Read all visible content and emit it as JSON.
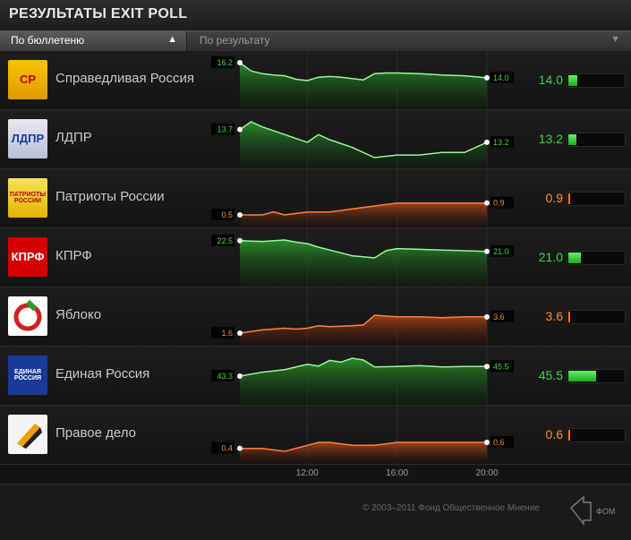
{
  "header": {
    "title": "РЕЗУЛЬТАТЫ EXIT POLL"
  },
  "sort": {
    "ballot_label": "По бюллетеню",
    "ballot_arrow": "▲",
    "result_label": "По результату",
    "result_arrow": "▼"
  },
  "parties": [
    {
      "name": "Справедливая Россия",
      "value": "14.0",
      "start_label": "16.2",
      "end_label": "14.0",
      "color": "#22bb22",
      "logo": "sr-logo",
      "logo_text": "СР",
      "share": 14.0
    },
    {
      "name": "ЛДПР",
      "value": "13.2",
      "start_label": "13.7",
      "end_label": "13.2",
      "color": "#22bb22",
      "logo": "ldpr-logo",
      "logo_text": "ЛДПР",
      "share": 13.2
    },
    {
      "name": "Патриоты России",
      "value": "0.9",
      "start_label": "0.5",
      "end_label": "0.9",
      "color": "#ff7722",
      "logo": "patriots-logo",
      "logo_text": "ПАТРИОТЫ РОССИИ",
      "share": 0.9
    },
    {
      "name": "КПРФ",
      "value": "21.0",
      "start_label": "22.5",
      "end_label": "21.0",
      "color": "#22bb22",
      "logo": "kprf-logo",
      "logo_text": "КПРФ",
      "share": 21.0
    },
    {
      "name": "Яблоко",
      "value": "3.6",
      "start_label": "1.6",
      "end_label": "3.6",
      "color": "#ff7722",
      "logo": "yabloko-logo",
      "logo_text": "",
      "share": 3.6
    },
    {
      "name": "Единая Россия",
      "value": "45.5",
      "start_label": "43.3",
      "end_label": "45.5",
      "color": "#22bb22",
      "logo": "er-logo",
      "logo_text": "ЕДИНАЯ РОССИЯ",
      "share": 45.5
    },
    {
      "name": "Правое дело",
      "value": "0.6",
      "start_label": "0.4",
      "end_label": "0.6",
      "color": "#ff7722",
      "logo": "pravoe-delo-logo",
      "logo_text": "",
      "share": 0.6
    }
  ],
  "chart_data": {
    "type": "line",
    "x_ticks": [
      "12:00",
      "16:00",
      "20:00"
    ],
    "x_range": [
      "9:00",
      "20:00"
    ],
    "series": [
      {
        "name": "Справедливая Россия",
        "color": "#22bb22",
        "x": [
          9.0,
          9.5,
          10.0,
          10.5,
          11.0,
          11.5,
          12.0,
          12.5,
          13.0,
          13.5,
          14.0,
          14.5,
          15.0,
          15.5,
          16.0,
          17.0,
          18.0,
          19.0,
          20.0
        ],
        "values": [
          16.2,
          15.0,
          14.6,
          14.4,
          14.3,
          13.8,
          13.6,
          14.1,
          14.2,
          14.1,
          13.9,
          13.7,
          14.6,
          14.7,
          14.7,
          14.6,
          14.4,
          14.3,
          14.0
        ]
      },
      {
        "name": "ЛДПР",
        "color": "#22bb22",
        "x": [
          9.0,
          9.5,
          10.0,
          11.0,
          12.0,
          12.5,
          13.0,
          14.0,
          15.0,
          16.0,
          17.0,
          18.0,
          19.0,
          20.0
        ],
        "values": [
          13.7,
          14.0,
          13.8,
          13.5,
          13.2,
          13.5,
          13.3,
          13.0,
          12.6,
          12.7,
          12.7,
          12.8,
          12.8,
          13.2
        ]
      },
      {
        "name": "Патриоты России",
        "color": "#ff7722",
        "x": [
          9.0,
          10.0,
          10.5,
          11.0,
          12.0,
          13.0,
          14.0,
          15.0,
          16.0,
          17.0,
          18.0,
          19.0,
          20.0
        ],
        "values": [
          0.5,
          0.5,
          0.6,
          0.5,
          0.6,
          0.6,
          0.7,
          0.8,
          0.9,
          0.9,
          0.9,
          0.9,
          0.9
        ]
      },
      {
        "name": "КПРФ",
        "color": "#22bb22",
        "x": [
          9.0,
          10.0,
          11.0,
          11.5,
          12.0,
          12.5,
          13.0,
          14.0,
          15.0,
          15.5,
          16.0,
          17.0,
          18.0,
          19.0,
          20.0
        ],
        "values": [
          22.5,
          22.4,
          22.6,
          22.3,
          22.1,
          21.6,
          21.2,
          20.4,
          20.1,
          21.1,
          21.4,
          21.3,
          21.2,
          21.1,
          21.0
        ]
      },
      {
        "name": "Яблоко",
        "color": "#ff7722",
        "x": [
          9.0,
          10.0,
          11.0,
          11.5,
          12.0,
          12.5,
          13.0,
          14.0,
          14.5,
          15.0,
          15.5,
          16.0,
          17.0,
          18.0,
          19.0,
          20.0
        ],
        "values": [
          1.6,
          2.0,
          2.2,
          2.1,
          2.2,
          2.5,
          2.4,
          2.5,
          2.6,
          3.8,
          3.7,
          3.6,
          3.6,
          3.5,
          3.6,
          3.6
        ]
      },
      {
        "name": "Единая Россия",
        "color": "#22bb22",
        "x": [
          9.0,
          10.0,
          11.0,
          12.0,
          12.5,
          13.0,
          13.5,
          14.0,
          14.5,
          15.0,
          16.0,
          17.0,
          18.0,
          19.0,
          20.0
        ],
        "values": [
          43.3,
          44.2,
          44.8,
          46.0,
          45.6,
          46.9,
          46.5,
          47.4,
          47.0,
          45.4,
          45.5,
          45.7,
          45.4,
          45.5,
          45.5
        ]
      },
      {
        "name": "Правое дело",
        "color": "#ff7722",
        "x": [
          9.0,
          10.0,
          11.0,
          12.0,
          12.5,
          13.0,
          14.0,
          15.0,
          16.0,
          17.0,
          18.0,
          19.0,
          20.0
        ],
        "values": [
          0.4,
          0.4,
          0.3,
          0.5,
          0.6,
          0.6,
          0.5,
          0.5,
          0.6,
          0.6,
          0.6,
          0.6,
          0.6
        ]
      }
    ]
  },
  "footer": {
    "copyright": "© 2003–2011 Фонд Общественное Мнение",
    "logo_text": "ФОМ"
  }
}
